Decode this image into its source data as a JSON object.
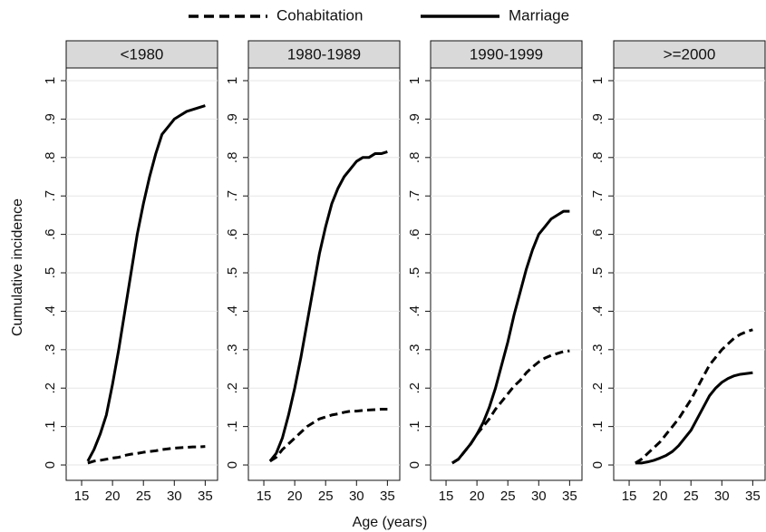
{
  "chart_data": {
    "type": "line",
    "x_label": "Age (years)",
    "y_label": "Cumulative incidence",
    "series": [
      {
        "name": "Cohabitation",
        "color": "#000000",
        "dashed": true
      },
      {
        "name": "Marriage",
        "color": "#000000",
        "dashed": false
      }
    ],
    "x": [
      16,
      17,
      18,
      19,
      20,
      21,
      22,
      23,
      24,
      25,
      26,
      27,
      28,
      29,
      30,
      31,
      32,
      33,
      34,
      35
    ],
    "xlim": [
      12.5,
      37
    ],
    "xticks": [
      15,
      20,
      25,
      30,
      35
    ],
    "ylim": [
      -0.04,
      1.033
    ],
    "yticks": [
      0,
      {
        "value": 0.1,
        "label": ".1"
      },
      {
        "value": 0.2,
        "label": ".2"
      },
      {
        "value": 0.3,
        "label": ".3"
      },
      {
        "value": 0.4,
        "label": ".4"
      },
      {
        "value": 0.5,
        "label": ".5"
      },
      {
        "value": 0.6,
        "label": ".6"
      },
      {
        "value": 0.7,
        "label": ".7"
      },
      {
        "value": 0.8,
        "label": ".8"
      },
      {
        "value": 0.9,
        "label": ".9"
      },
      1
    ],
    "grid": true,
    "panels": [
      {
        "title": "<1980",
        "series_values": [
          [
            0.005,
            0.01,
            0.012,
            0.015,
            0.018,
            0.02,
            0.025,
            0.028,
            0.03,
            0.033,
            0.035,
            0.037,
            0.04,
            0.042,
            0.044,
            0.045,
            0.046,
            0.047,
            0.047,
            0.048
          ],
          [
            0.01,
            0.04,
            0.08,
            0.13,
            0.21,
            0.3,
            0.4,
            0.5,
            0.6,
            0.68,
            0.75,
            0.81,
            0.86,
            0.88,
            0.9,
            0.91,
            0.92,
            0.925,
            0.93,
            0.935
          ]
        ]
      },
      {
        "title": "1980-1989",
        "series_values": [
          [
            0.01,
            0.02,
            0.04,
            0.055,
            0.07,
            0.085,
            0.1,
            0.11,
            0.12,
            0.125,
            0.13,
            0.133,
            0.137,
            0.14,
            0.14,
            0.142,
            0.143,
            0.144,
            0.145,
            0.145
          ],
          [
            0.01,
            0.03,
            0.07,
            0.13,
            0.2,
            0.28,
            0.37,
            0.46,
            0.55,
            0.62,
            0.68,
            0.72,
            0.75,
            0.77,
            0.79,
            0.8,
            0.8,
            0.81,
            0.81,
            0.815
          ]
        ]
      },
      {
        "title": "1990-1999",
        "series_values": [
          [
            0.005,
            0.015,
            0.035,
            0.055,
            0.08,
            0.1,
            0.12,
            0.145,
            0.165,
            0.185,
            0.205,
            0.22,
            0.24,
            0.255,
            0.268,
            0.278,
            0.285,
            0.29,
            0.295,
            0.297
          ],
          [
            0.005,
            0.015,
            0.035,
            0.055,
            0.08,
            0.11,
            0.15,
            0.2,
            0.26,
            0.32,
            0.39,
            0.45,
            0.51,
            0.56,
            0.6,
            0.62,
            0.64,
            0.65,
            0.66,
            0.66
          ]
        ]
      },
      {
        "title": ">=2000",
        "series_values": [
          [
            0.005,
            0.015,
            0.03,
            0.045,
            0.06,
            0.08,
            0.1,
            0.12,
            0.145,
            0.17,
            0.2,
            0.23,
            0.26,
            0.28,
            0.3,
            0.315,
            0.33,
            0.34,
            0.347,
            0.352
          ],
          [
            0.005,
            0.005,
            0.008,
            0.012,
            0.018,
            0.025,
            0.035,
            0.05,
            0.07,
            0.09,
            0.12,
            0.15,
            0.18,
            0.2,
            0.215,
            0.225,
            0.232,
            0.236,
            0.238,
            0.24
          ]
        ]
      }
    ]
  }
}
